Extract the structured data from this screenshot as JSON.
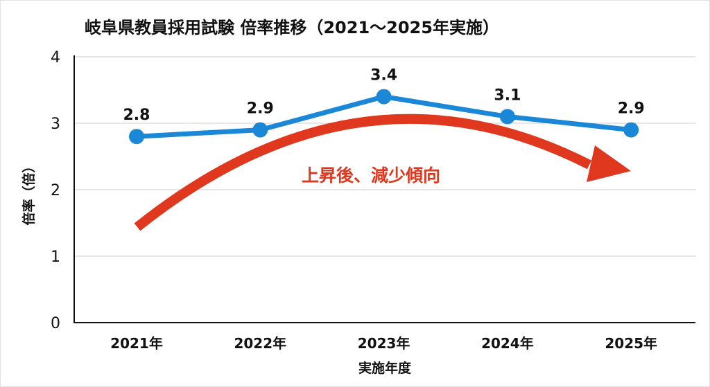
{
  "chart_data": {
    "type": "line",
    "title": "岐阜県教員採用試験 倍率推移（2021〜2025年実施）",
    "xlabel": "実施年度",
    "ylabel": "倍率（倍）",
    "categories": [
      "2021年",
      "2022年",
      "2023年",
      "2024年",
      "2025年"
    ],
    "values": [
      2.8,
      2.9,
      3.4,
      3.1,
      2.9
    ],
    "data_labels": [
      "2.8",
      "2.9",
      "3.4",
      "3.1",
      "2.9"
    ],
    "ylim": [
      0,
      4
    ],
    "yticks": [
      "0",
      "1",
      "2",
      "3",
      "4"
    ],
    "grid": true,
    "annotation": "上昇後、減少傾向",
    "colors": {
      "line": "#1a88d6",
      "annotation": "#e0371f",
      "grid": "#cccccc"
    }
  }
}
